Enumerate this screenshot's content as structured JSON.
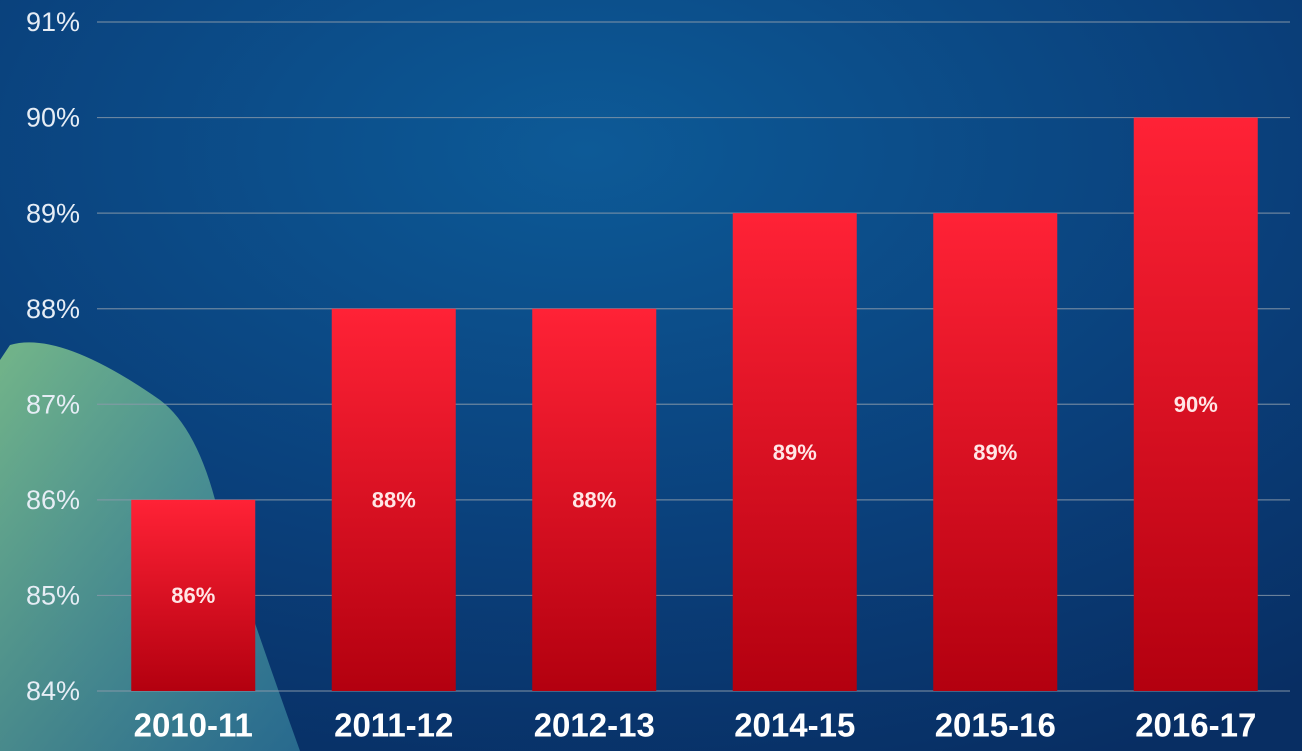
{
  "chart_data": {
    "type": "bar",
    "categories": [
      "2010-11",
      "2011-12",
      "2012-13",
      "2014-15",
      "2015-16",
      "2016-17"
    ],
    "values": [
      86,
      88,
      88,
      89,
      89,
      90
    ],
    "value_labels": [
      "86%",
      "88%",
      "88%",
      "89%",
      "89%",
      "90%"
    ],
    "color": "#e01a2c",
    "ylim": [
      84,
      91
    ],
    "yticks": [
      {
        "value": 84,
        "label": "84%"
      },
      {
        "value": 85,
        "label": "85%"
      },
      {
        "value": 86,
        "label": "86%"
      },
      {
        "value": 87,
        "label": "87%"
      },
      {
        "value": 88,
        "label": "88%"
      },
      {
        "value": 89,
        "label": "89%"
      },
      {
        "value": 90,
        "label": "90%"
      },
      {
        "value": 91,
        "label": "91%"
      }
    ],
    "grid": true
  }
}
